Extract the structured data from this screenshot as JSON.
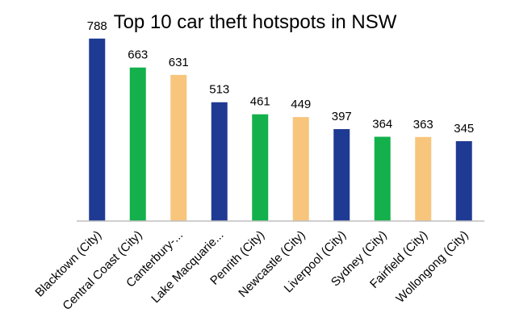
{
  "chart_data": {
    "type": "bar",
    "title": "Top 10 car theft hotspots in NSW",
    "xlabel": "",
    "ylabel": "",
    "ylim": [
      0,
      850
    ],
    "grid": false,
    "legend": "none",
    "categories": [
      "Blacktown (City)",
      "Central Coast (City)",
      "Canterbury-...",
      "Lake Macquarie...",
      "Penrith (City)",
      "Newcastle (City)",
      "Liverpool (City)",
      "Sydney (City)",
      "Fairfield (City)",
      "Wollongong (City)"
    ],
    "values": [
      788,
      663,
      631,
      513,
      461,
      449,
      397,
      364,
      363,
      345
    ],
    "data_labels": [
      "788",
      "663",
      "631",
      "513",
      "461",
      "449",
      "397",
      "364",
      "363",
      "345"
    ],
    "bar_colors": [
      "#1F3A93",
      "#13B04B",
      "#F7C57C",
      "#1F3A93",
      "#13B04B",
      "#F7C57C",
      "#1F3A93",
      "#13B04B",
      "#F7C57C",
      "#1F3A93"
    ],
    "axis_color": "#BFBFBF"
  }
}
